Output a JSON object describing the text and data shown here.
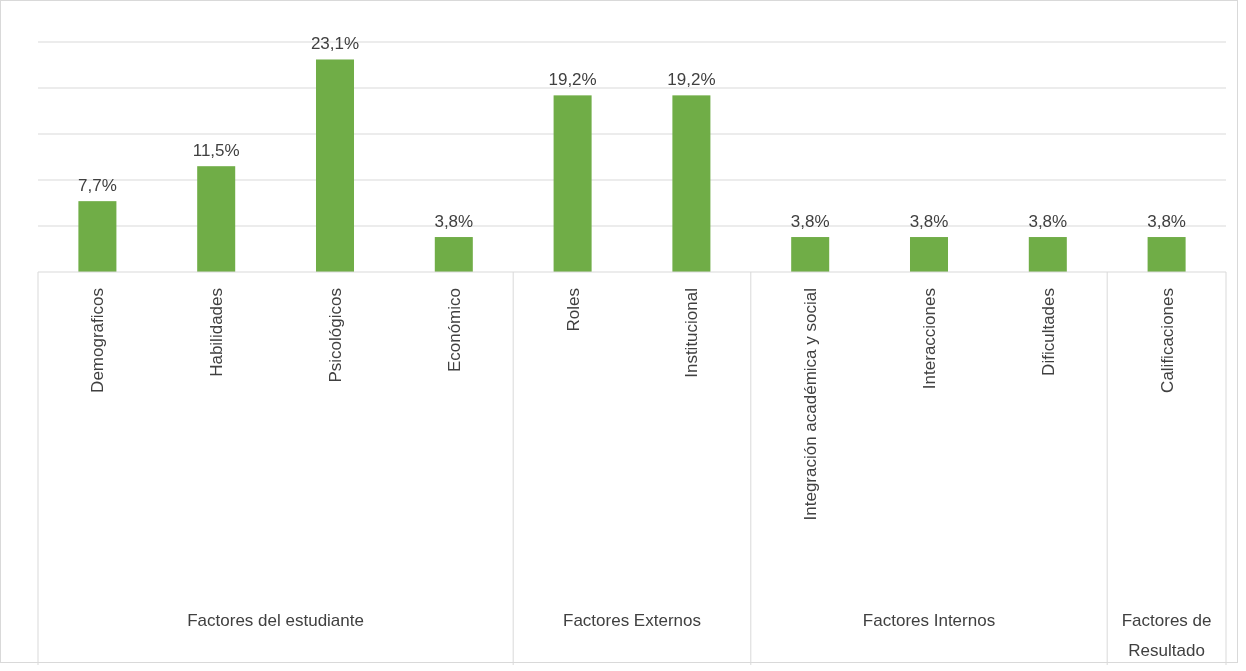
{
  "chart_data": {
    "type": "bar",
    "categories": [
      "Demograficos",
      "Habilidades",
      "Psicológicos",
      "Económico",
      "Roles",
      "Institucional",
      "Integración académica y social",
      "Interacciones",
      "Dificultades",
      "Calificaciones"
    ],
    "values": [
      7.7,
      11.5,
      23.1,
      3.8,
      19.2,
      19.2,
      3.8,
      3.8,
      3.8,
      3.8
    ],
    "value_labels": [
      "7,7%",
      "11,5%",
      "23,1%",
      "3,8%",
      "19,2%",
      "19,2%",
      "3,8%",
      "3,8%",
      "3,8%",
      "3,8%"
    ],
    "color": "#70ad47",
    "ylim": [
      0,
      25
    ],
    "yticks": [
      {
        "value": 0,
        "label": null
      },
      {
        "value": 5,
        "label": null
      },
      {
        "value": 10,
        "label": null
      },
      {
        "value": 15,
        "label": null
      },
      {
        "value": 20,
        "label": null
      },
      {
        "value": 25,
        "label": null
      }
    ],
    "grid": "y",
    "tick_labels": "x",
    "annotations": [
      "Factores del estudiante",
      "Factores Externos",
      "Factores Internos",
      "Factores de Resultado"
    ]
  }
}
